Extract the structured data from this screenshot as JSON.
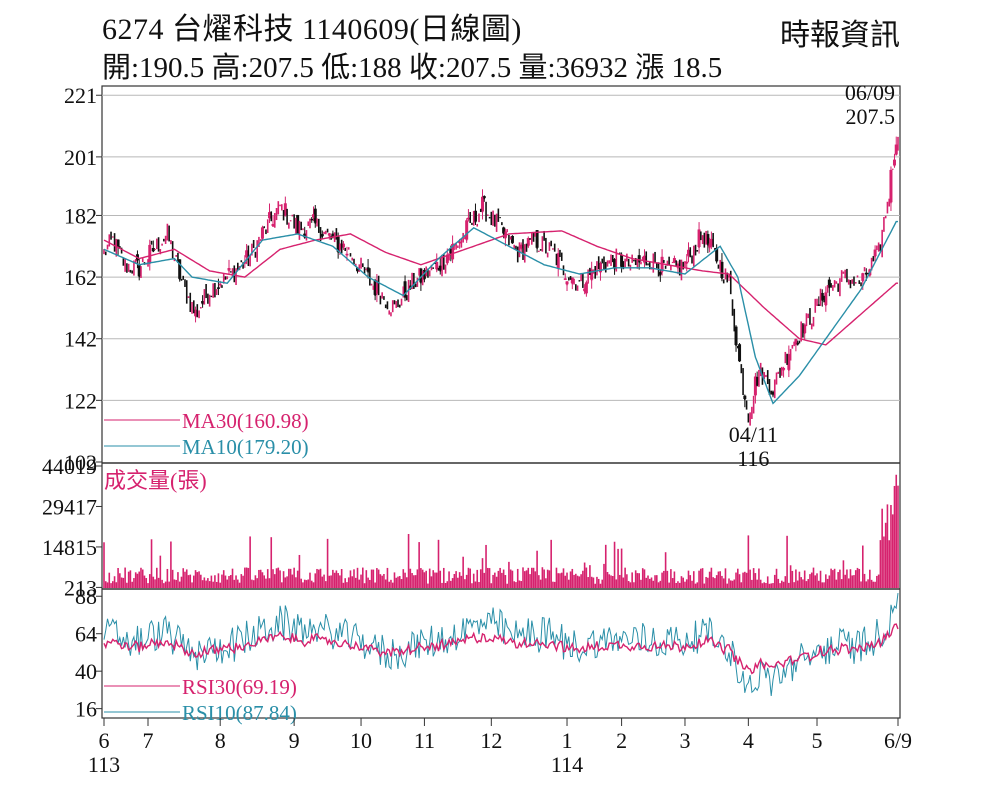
{
  "header": {
    "title": "6274  台燿科技 1140609(日線圖)",
    "source": "時報資訊",
    "ohlc": "開:190.5 高:207.5 低:188 收:207.5 量:36932 漲 18.5"
  },
  "chart_data": {
    "type": "candlestick",
    "price_panel": {
      "yticks": [
        221,
        201,
        182,
        162,
        142,
        122,
        102
      ],
      "ylim": [
        102,
        224
      ],
      "legend": [
        {
          "label": "MA30(160.98)",
          "color": "#d6226e"
        },
        {
          "label": "MA10(179.20)",
          "color": "#2a8fa8"
        }
      ],
      "annotations": [
        {
          "label": "06/09",
          "value": "207.5"
        },
        {
          "label": "04/11",
          "value": "116"
        }
      ],
      "high_close": 207.5,
      "low_close": 116,
      "ma30_anchors": [
        [
          0,
          174
        ],
        [
          20,
          168
        ],
        [
          40,
          171
        ],
        [
          60,
          164
        ],
        [
          80,
          162
        ],
        [
          100,
          171
        ],
        [
          120,
          174
        ],
        [
          140,
          176
        ],
        [
          160,
          170
        ],
        [
          180,
          166
        ],
        [
          200,
          170
        ],
        [
          230,
          176
        ],
        [
          260,
          177
        ],
        [
          280,
          172
        ],
        [
          300,
          168
        ],
        [
          320,
          166
        ],
        [
          340,
          164
        ],
        [
          355,
          163
        ],
        [
          375,
          152
        ],
        [
          395,
          142
        ],
        [
          410,
          140
        ],
        [
          430,
          150
        ],
        [
          450,
          160
        ]
      ],
      "ma10_anchors": [
        [
          0,
          171
        ],
        [
          20,
          166
        ],
        [
          40,
          168
        ],
        [
          50,
          162
        ],
        [
          70,
          160
        ],
        [
          90,
          174
        ],
        [
          110,
          176
        ],
        [
          130,
          172
        ],
        [
          150,
          162
        ],
        [
          170,
          156
        ],
        [
          190,
          168
        ],
        [
          210,
          178
        ],
        [
          230,
          172
        ],
        [
          250,
          166
        ],
        [
          270,
          163
        ],
        [
          290,
          165
        ],
        [
          310,
          165
        ],
        [
          330,
          163
        ],
        [
          350,
          172
        ],
        [
          360,
          162
        ],
        [
          370,
          136
        ],
        [
          380,
          121
        ],
        [
          395,
          130
        ],
        [
          410,
          142
        ],
        [
          430,
          158
        ],
        [
          450,
          180
        ]
      ],
      "close_anchors": [
        [
          0,
          170
        ],
        [
          5,
          174
        ],
        [
          12,
          166
        ],
        [
          20,
          165
        ],
        [
          28,
          171
        ],
        [
          36,
          176
        ],
        [
          45,
          159
        ],
        [
          52,
          150
        ],
        [
          60,
          158
        ],
        [
          70,
          162
        ],
        [
          82,
          168
        ],
        [
          90,
          176
        ],
        [
          100,
          185
        ],
        [
          110,
          178
        ],
        [
          120,
          179
        ],
        [
          130,
          174
        ],
        [
          140,
          170
        ],
        [
          152,
          160
        ],
        [
          165,
          152
        ],
        [
          175,
          160
        ],
        [
          190,
          166
        ],
        [
          202,
          174
        ],
        [
          215,
          185
        ],
        [
          225,
          178
        ],
        [
          235,
          170
        ],
        [
          245,
          174
        ],
        [
          255,
          170
        ],
        [
          262,
          164
        ],
        [
          270,
          160
        ],
        [
          280,
          165
        ],
        [
          290,
          168
        ],
        [
          300,
          166
        ],
        [
          310,
          168
        ],
        [
          320,
          164
        ],
        [
          330,
          166
        ],
        [
          340,
          176
        ],
        [
          350,
          166
        ],
        [
          355,
          160
        ],
        [
          362,
          130
        ],
        [
          366,
          118
        ],
        [
          372,
          132
        ],
        [
          380,
          126
        ],
        [
          390,
          140
        ],
        [
          400,
          148
        ],
        [
          410,
          158
        ],
        [
          420,
          162
        ],
        [
          430,
          160
        ],
        [
          440,
          170
        ],
        [
          446,
          190
        ],
        [
          450,
          207.5
        ]
      ]
    },
    "volume_panel": {
      "label": "成交量(張)",
      "yticks": [
        44019,
        29417,
        14815,
        213
      ],
      "ylim": [
        0,
        44019
      ],
      "last_volume": 36932
    },
    "rsi_panel": {
      "yticks": [
        88,
        64,
        40,
        16
      ],
      "ylim": [
        10,
        92
      ],
      "legend": [
        {
          "label": "RSI30(69.19)",
          "color": "#d6226e"
        },
        {
          "label": "RSI10(87.84)",
          "color": "#2a8fa8"
        }
      ]
    },
    "xaxis": {
      "months": [
        {
          "label": "6",
          "idx": 0
        },
        {
          "label": "7",
          "idx": 25
        },
        {
          "label": "8",
          "idx": 66
        },
        {
          "label": "9",
          "idx": 108
        },
        {
          "label": "10",
          "idx": 146
        },
        {
          "label": "11",
          "idx": 182
        },
        {
          "label": "12",
          "idx": 220
        },
        {
          "label": "1",
          "idx": 263
        },
        {
          "label": "2",
          "idx": 294
        },
        {
          "label": "3",
          "idx": 330
        },
        {
          "label": "4",
          "idx": 366
        },
        {
          "label": "5",
          "idx": 405
        },
        {
          "label": "6/9",
          "idx": 451
        }
      ],
      "year_labels": [
        {
          "label": "113",
          "idx": 0
        },
        {
          "label": "114",
          "idx": 263
        }
      ],
      "n_days": 452
    },
    "colors": {
      "up": "#d6226e",
      "down": "#111111",
      "grid": "#b8b8b8",
      "ma30": "#d6226e",
      "ma10": "#2a8fa8",
      "volume": "#d6226e"
    }
  }
}
